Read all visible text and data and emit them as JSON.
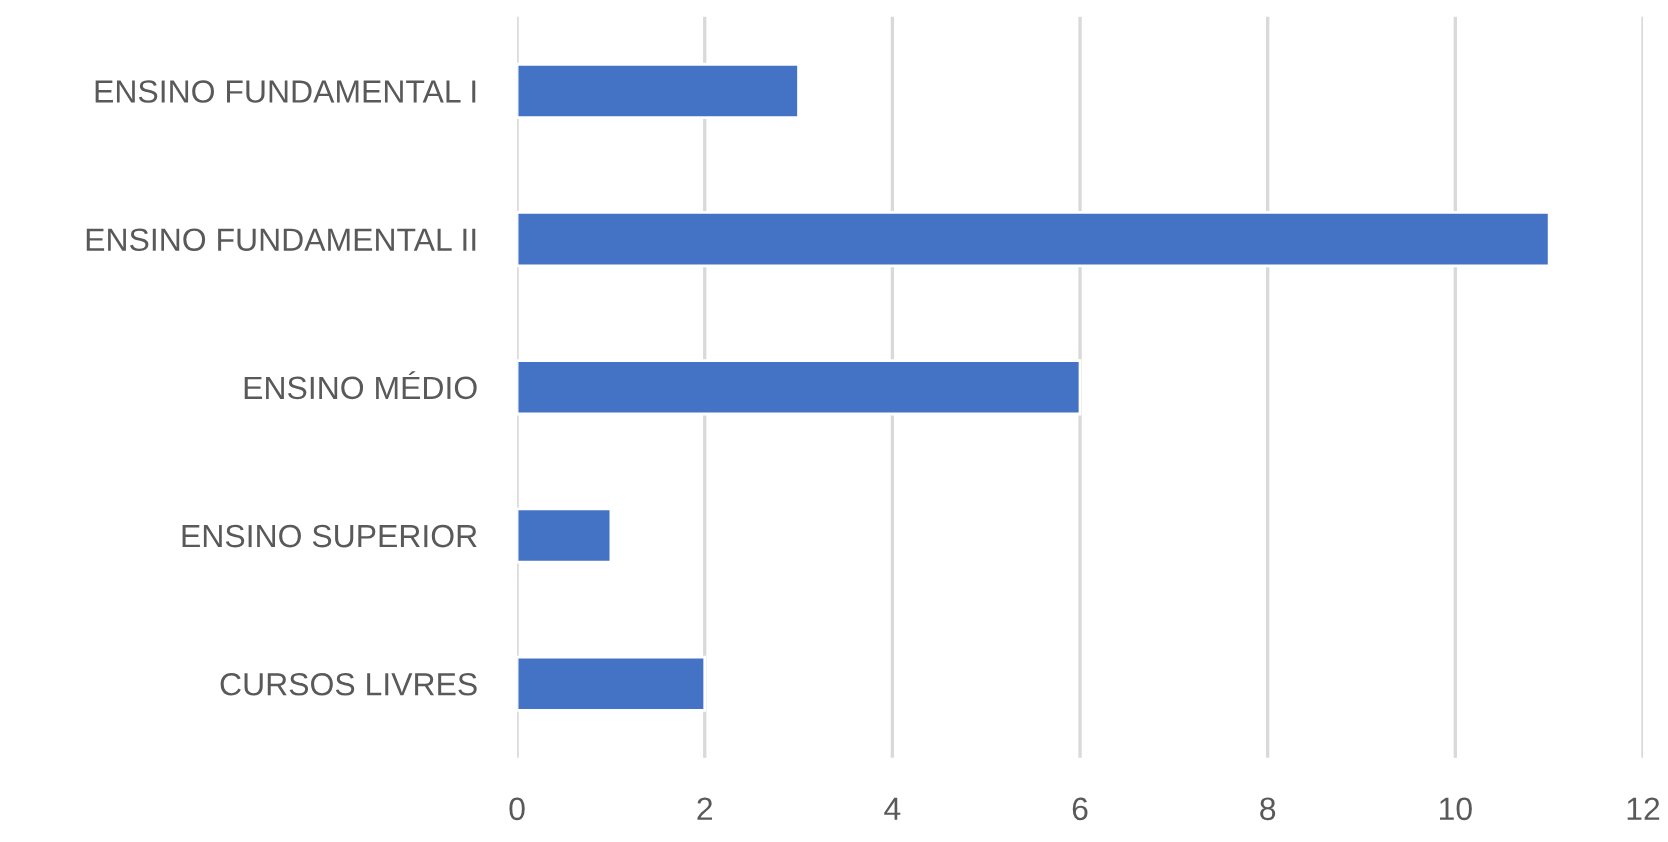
{
  "chart_data": {
    "type": "bar",
    "orientation": "horizontal",
    "categories": [
      "ENSINO FUNDAMENTAL I",
      "ENSINO FUNDAMENTAL II",
      "ENSINO MÉDIO",
      "ENSINO SUPERIOR",
      "CURSOS LIVRES"
    ],
    "values": [
      3,
      11,
      6,
      1,
      2
    ],
    "color": "#4472c4",
    "xlim": [
      0,
      12
    ],
    "xticks": [
      0,
      2,
      4,
      6,
      8,
      10,
      12
    ],
    "grid": "x",
    "legend": false
  }
}
